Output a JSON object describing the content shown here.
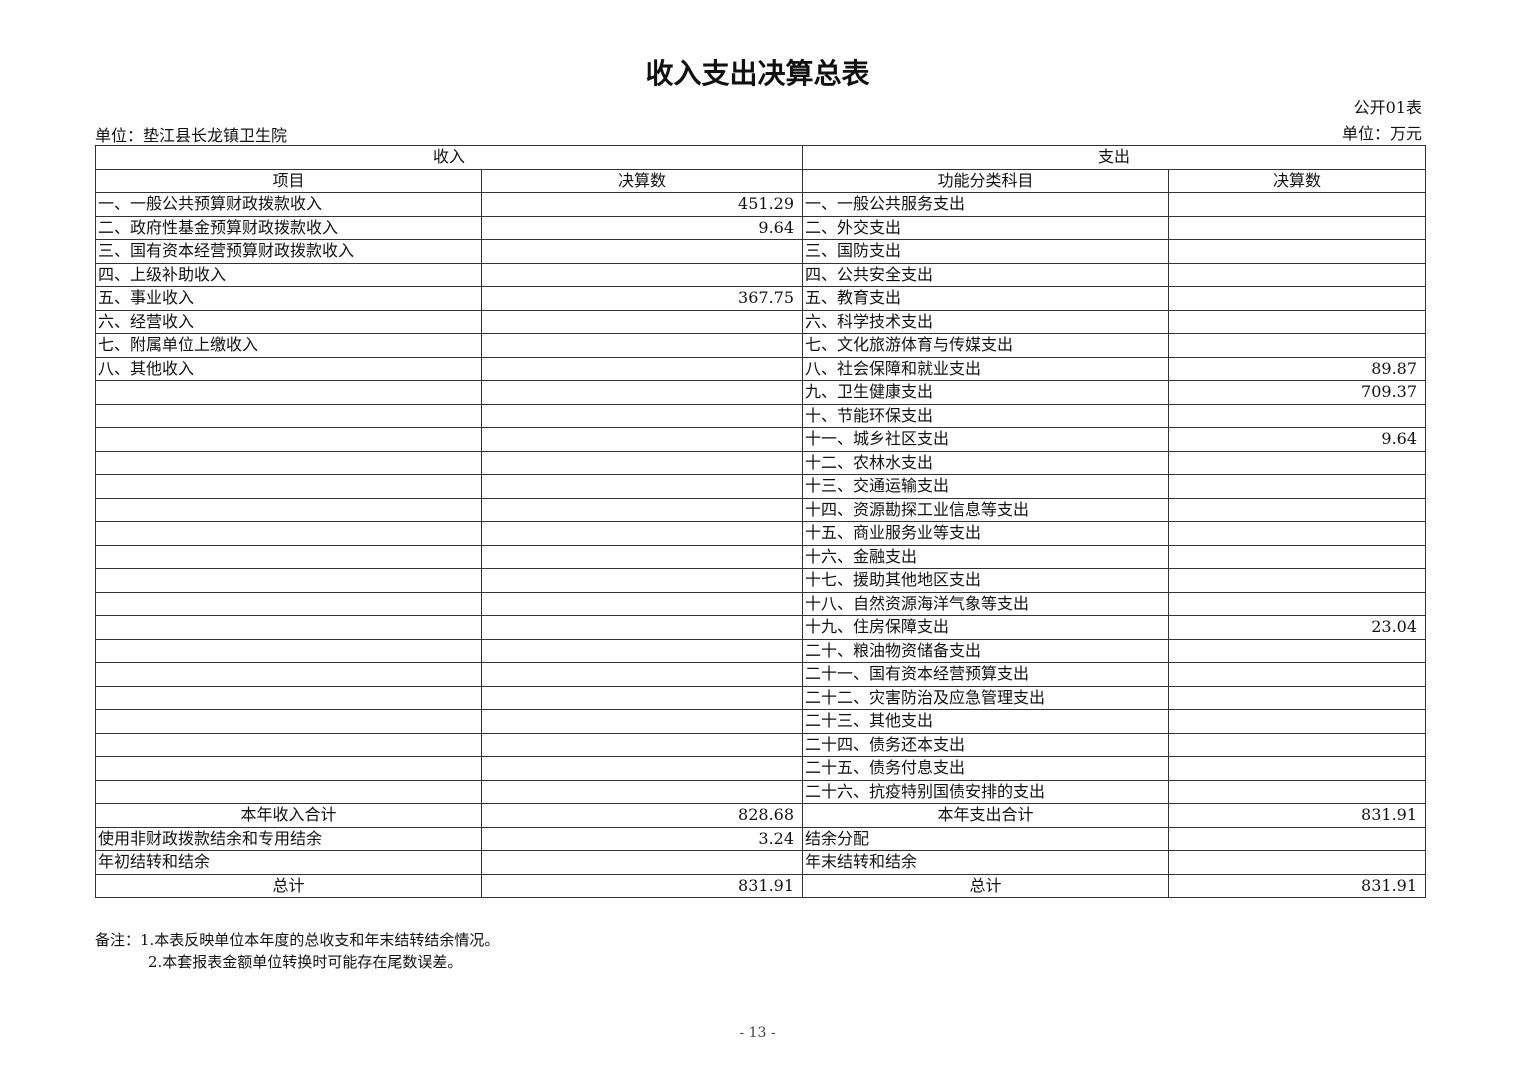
{
  "title": "收入支出决算总表",
  "table_code": "公开01表",
  "unit_left": "单位：垫江县长龙镇卫生院",
  "unit_right": "单位：万元",
  "header": {
    "income": "收入",
    "expense": "支出",
    "item": "项目",
    "amount": "决算数",
    "func": "功能分类科目",
    "amount2": "决算数"
  },
  "rows": [
    {
      "li": "一、一般公共预算财政拨款收入",
      "lv": "451.29",
      "ri": "一、一般公共服务支出",
      "rv": ""
    },
    {
      "li": "二、政府性基金预算财政拨款收入",
      "lv": "9.64",
      "ri": "二、外交支出",
      "rv": ""
    },
    {
      "li": "三、国有资本经营预算财政拨款收入",
      "lv": "",
      "ri": "三、国防支出",
      "rv": ""
    },
    {
      "li": "四、上级补助收入",
      "lv": "",
      "ri": "四、公共安全支出",
      "rv": ""
    },
    {
      "li": "五、事业收入",
      "lv": "367.75",
      "ri": "五、教育支出",
      "rv": ""
    },
    {
      "li": "六、经营收入",
      "lv": "",
      "ri": "六、科学技术支出",
      "rv": ""
    },
    {
      "li": "七、附属单位上缴收入",
      "lv": "",
      "ri": "七、文化旅游体育与传媒支出",
      "rv": ""
    },
    {
      "li": "八、其他收入",
      "lv": "",
      "ri": "八、社会保障和就业支出",
      "rv": "89.87"
    },
    {
      "li": "",
      "lv": "",
      "ri": "九、卫生健康支出",
      "rv": "709.37"
    },
    {
      "li": "",
      "lv": "",
      "ri": "十、节能环保支出",
      "rv": ""
    },
    {
      "li": "",
      "lv": "",
      "ri": "十一、城乡社区支出",
      "rv": "9.64"
    },
    {
      "li": "",
      "lv": "",
      "ri": "十二、农林水支出",
      "rv": ""
    },
    {
      "li": "",
      "lv": "",
      "ri": "十三、交通运输支出",
      "rv": ""
    },
    {
      "li": "",
      "lv": "",
      "ri": "十四、资源勘探工业信息等支出",
      "rv": ""
    },
    {
      "li": "",
      "lv": "",
      "ri": "十五、商业服务业等支出",
      "rv": ""
    },
    {
      "li": "",
      "lv": "",
      "ri": "十六、金融支出",
      "rv": ""
    },
    {
      "li": "",
      "lv": "",
      "ri": "十七、援助其他地区支出",
      "rv": ""
    },
    {
      "li": "",
      "lv": "",
      "ri": "十八、自然资源海洋气象等支出",
      "rv": ""
    },
    {
      "li": "",
      "lv": "",
      "ri": "十九、住房保障支出",
      "rv": "23.04"
    },
    {
      "li": "",
      "lv": "",
      "ri": "二十、粮油物资储备支出",
      "rv": ""
    },
    {
      "li": "",
      "lv": "",
      "ri": "二十一、国有资本经营预算支出",
      "rv": ""
    },
    {
      "li": "",
      "lv": "",
      "ri": "二十二、灾害防治及应急管理支出",
      "rv": ""
    },
    {
      "li": "",
      "lv": "",
      "ri": "二十三、其他支出",
      "rv": ""
    },
    {
      "li": "",
      "lv": "",
      "ri": "二十四、债务还本支出",
      "rv": ""
    },
    {
      "li": "",
      "lv": "",
      "ri": "二十五、债务付息支出",
      "rv": ""
    },
    {
      "li": "",
      "lv": "",
      "ri": "二十六、抗疫特别国债安排的支出",
      "rv": ""
    },
    {
      "li": "本年收入合计",
      "lv": "828.68",
      "ri": "本年支出合计",
      "rv": "831.91",
      "center": true
    },
    {
      "li": "使用非财政拨款结余和专用结余",
      "lv": "3.24",
      "ri": "结余分配",
      "rv": ""
    },
    {
      "li": "年初结转和结余",
      "lv": "",
      "ri": "年末结转和结余",
      "rv": ""
    },
    {
      "li": "总计",
      "lv": "831.91",
      "ri": "总计",
      "rv": "831.91",
      "center": true
    }
  ],
  "notes": [
    "备注：1.本表反映单位本年度的总收支和年末结转结余情况。",
    "2.本套报表金额单位转换时可能存在尾数误差。"
  ],
  "page_number": "- 13 -"
}
